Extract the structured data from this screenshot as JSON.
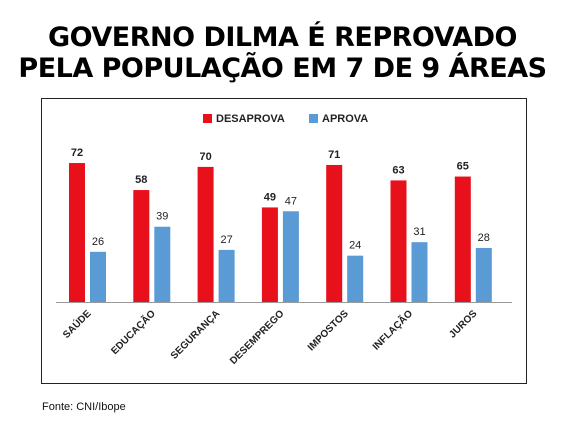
{
  "headline": {
    "line1": "GOVERNO DILMA É REPROVADO",
    "line2": "PELA POPULAÇÃO EM 7 DE 9 ÁREAS"
  },
  "source": "Fonte: CNI/Ibope",
  "colors": {
    "desaprova": "#e8101a",
    "aprova": "#5b9bd5",
    "axis": "#999999",
    "label": "#222222"
  },
  "chart_data": {
    "type": "bar",
    "categories": [
      "SAÚDE",
      "EDUCAÇÃO",
      "SEGURANÇA",
      "DESEMPREGO",
      "IMPOSTOS",
      "INFLAÇÃO",
      "JUROS"
    ],
    "series": [
      {
        "name": "DESAPROVA",
        "values": [
          72,
          58,
          70,
          49,
          71,
          63,
          65
        ]
      },
      {
        "name": "APROVA",
        "values": [
          26,
          39,
          27,
          47,
          24,
          31,
          28
        ]
      }
    ],
    "ylim": [
      0,
      100
    ],
    "grid": false,
    "legend": "top-center",
    "data_labels": true
  }
}
